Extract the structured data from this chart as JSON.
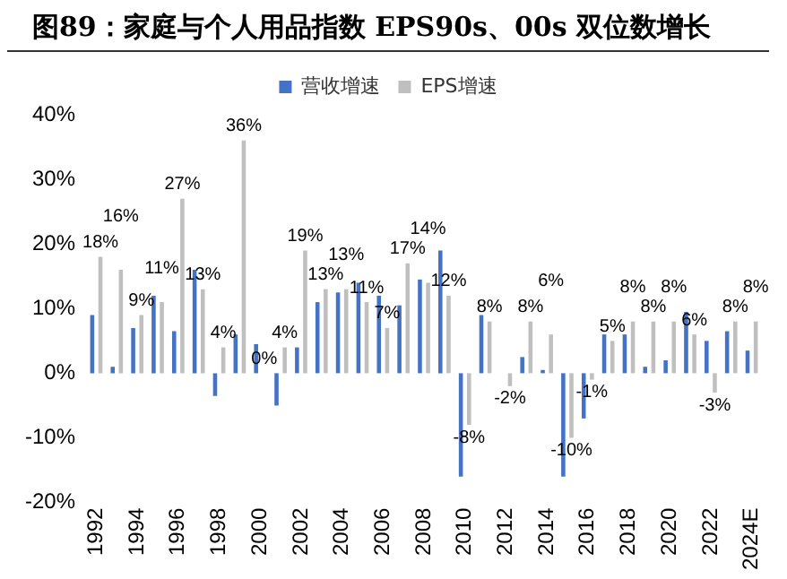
{
  "chart_data": {
    "type": "bar",
    "title": "图89：家庭与个人用品指数 EPS90s、00s 双位数增长",
    "categories": [
      "1992",
      null,
      "1994",
      null,
      "1996",
      null,
      "1998",
      null,
      "2000",
      null,
      "2002",
      null,
      "2004",
      null,
      "2006",
      null,
      "2008",
      null,
      "2010",
      null,
      "2012",
      null,
      "2014",
      null,
      "2016",
      null,
      "2018",
      null,
      "2020",
      null,
      "2022",
      null,
      "2024E"
    ],
    "series": [
      {
        "name": "营收增速",
        "color": "#4472c4",
        "values": [
          9,
          1,
          7,
          12,
          6.5,
          16,
          -3.5,
          6,
          4.5,
          -5,
          4,
          11,
          12.5,
          14,
          12,
          10.5,
          14.5,
          19,
          -16,
          9,
          0,
          2.5,
          0.5,
          -16,
          -7,
          6,
          6,
          1,
          2,
          9.5,
          5,
          6.5,
          3.5
        ]
      },
      {
        "name": "EPS增速",
        "color": "#bfbfbf",
        "values": [
          18,
          16,
          9,
          11,
          27,
          13,
          4,
          36,
          0,
          4,
          19,
          13,
          13,
          11,
          7,
          17,
          14,
          12,
          -8,
          8,
          -2,
          8,
          6,
          -10,
          -1,
          5,
          8,
          8,
          8,
          6,
          -3,
          8,
          8
        ],
        "value_labels": [
          "18%",
          "16%",
          "9%",
          "11%",
          "27%",
          "13%",
          "4%",
          "36%",
          "0%",
          "4%",
          "19%",
          "13%",
          "13%",
          "11%",
          "7%",
          "17%",
          "14%",
          "12%",
          "-8%",
          "8%",
          "-2%",
          "8%",
          "6%",
          "-10%",
          "-1%",
          "5%",
          "8%",
          "8%",
          "8%",
          "6%",
          "-3%",
          "8%",
          "8%"
        ]
      }
    ],
    "ylim": [
      -20,
      40
    ],
    "yticks": [
      {
        "value": -20,
        "label": "-20%"
      },
      {
        "value": -10,
        "label": "-10%"
      },
      {
        "value": 0,
        "label": "0%"
      },
      {
        "value": 10,
        "label": "10%"
      },
      {
        "value": 20,
        "label": "20%"
      },
      {
        "value": 30,
        "label": "30%"
      },
      {
        "value": 40,
        "label": "40%"
      }
    ],
    "grid": false,
    "legend": "top"
  }
}
